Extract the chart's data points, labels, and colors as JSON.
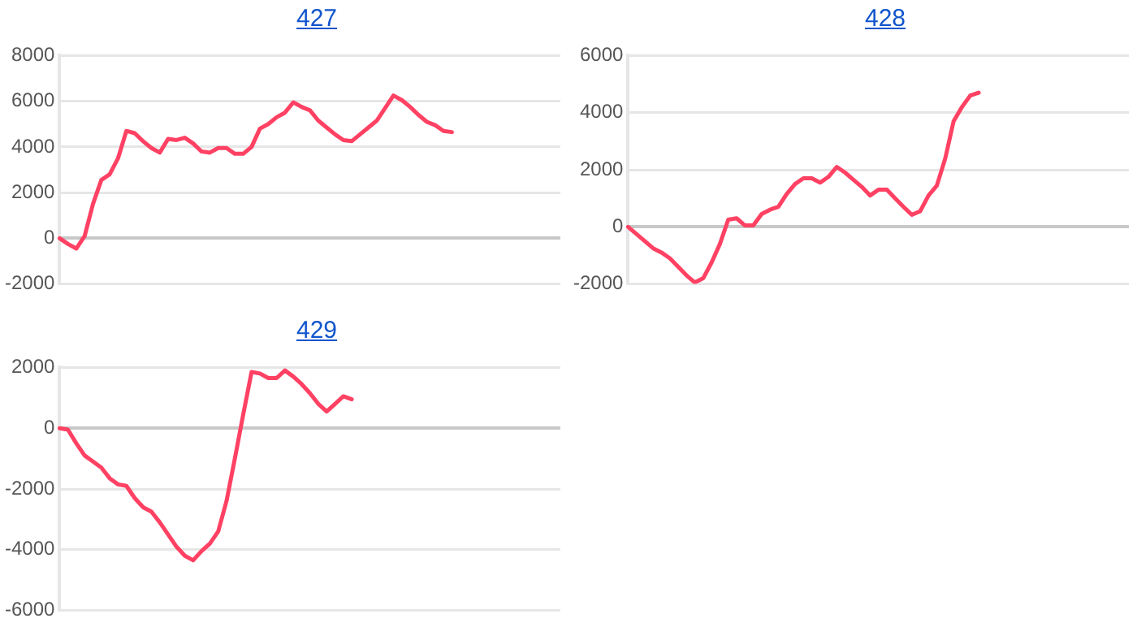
{
  "chart_data": [
    {
      "type": "line",
      "title": "427",
      "categories": [
        null,
        null,
        null,
        null,
        null,
        null,
        null,
        null,
        null,
        null,
        null,
        null,
        null,
        null,
        null,
        null,
        null,
        null,
        null,
        null,
        null,
        null,
        null,
        null,
        null,
        null,
        null,
        null,
        null,
        null,
        null,
        null,
        null,
        null,
        null,
        null,
        null,
        null,
        null,
        null,
        null,
        null,
        null,
        null,
        null,
        null,
        null,
        null,
        null,
        null,
        null,
        null,
        null,
        null,
        null,
        null,
        null,
        null,
        null,
        null,
        null
      ],
      "series": [
        {
          "color": "#ff4163",
          "values": [
            0,
            -250,
            -450,
            100,
            1500,
            2550,
            2800,
            3500,
            4700,
            4600,
            4250,
            3950,
            3750,
            4350,
            4300,
            4400,
            4150,
            3800,
            3750,
            3950,
            3950,
            3700,
            3700,
            4000,
            4800,
            5000,
            5300,
            5500,
            5950,
            5750,
            5600,
            5150,
            4850,
            4550,
            4300,
            4250,
            4550,
            4850,
            5150,
            5700,
            6250,
            6050,
            5750,
            5400,
            5100,
            4950,
            4700,
            4650,
            null,
            null,
            null,
            null,
            null,
            null,
            null,
            null,
            null,
            null,
            null,
            null,
            null
          ]
        }
      ],
      "ylim": [
        -2000,
        8000
      ],
      "yticks": [
        -2000,
        0,
        2000,
        4000,
        6000,
        8000
      ],
      "grid": "y",
      "tick_labels": "y",
      "legend": false,
      "marker": "none",
      "line_style": "solid"
    },
    {
      "type": "line",
      "title": "428",
      "categories": [
        null,
        null,
        null,
        null,
        null,
        null,
        null,
        null,
        null,
        null,
        null,
        null,
        null,
        null,
        null,
        null,
        null,
        null,
        null,
        null,
        null,
        null,
        null,
        null,
        null,
        null,
        null,
        null,
        null,
        null,
        null,
        null,
        null,
        null,
        null,
        null,
        null,
        null,
        null,
        null,
        null,
        null,
        null,
        null,
        null,
        null,
        null,
        null,
        null,
        null,
        null,
        null,
        null,
        null,
        null,
        null,
        null,
        null,
        null,
        null,
        null
      ],
      "series": [
        {
          "color": "#ff4163",
          "values": [
            0,
            -250,
            -500,
            -750,
            -900,
            -1100,
            -1400,
            -1700,
            -1950,
            -1800,
            -1250,
            -600,
            250,
            300,
            50,
            50,
            450,
            600,
            700,
            1150,
            1500,
            1700,
            1700,
            1550,
            1750,
            2100,
            1900,
            1650,
            1400,
            1100,
            1300,
            1300,
            1000,
            700,
            420,
            550,
            1100,
            1450,
            2400,
            3700,
            4200,
            4600,
            4700,
            null,
            null,
            null,
            null,
            null,
            null,
            null,
            null,
            null,
            null,
            null,
            null,
            null,
            null,
            null,
            null,
            null,
            null
          ]
        }
      ],
      "ylim": [
        -2000,
        6000
      ],
      "yticks": [
        -2000,
        0,
        2000,
        4000,
        6000
      ],
      "grid": "y",
      "tick_labels": "y",
      "legend": false,
      "marker": "none",
      "line_style": "solid"
    },
    {
      "type": "line",
      "title": "429",
      "categories": [
        null,
        null,
        null,
        null,
        null,
        null,
        null,
        null,
        null,
        null,
        null,
        null,
        null,
        null,
        null,
        null,
        null,
        null,
        null,
        null,
        null,
        null,
        null,
        null,
        null,
        null,
        null,
        null,
        null,
        null,
        null,
        null,
        null,
        null,
        null,
        null,
        null,
        null,
        null,
        null,
        null,
        null,
        null,
        null,
        null,
        null,
        null,
        null,
        null,
        null,
        null,
        null,
        null,
        null,
        null,
        null,
        null,
        null,
        null,
        null,
        null
      ],
      "series": [
        {
          "color": "#ff4163",
          "values": [
            0,
            -50,
            -500,
            -900,
            -1100,
            -1300,
            -1650,
            -1850,
            -1900,
            -2300,
            -2600,
            -2750,
            -3100,
            -3500,
            -3900,
            -4200,
            -4350,
            -4050,
            -3800,
            -3400,
            -2400,
            -1000,
            450,
            1850,
            1800,
            1650,
            1650,
            1900,
            1700,
            1450,
            1150,
            800,
            550,
            800,
            1050,
            950,
            null,
            null,
            null,
            null,
            null,
            null,
            null,
            null,
            null,
            null,
            null,
            null,
            null,
            null,
            null,
            null,
            null,
            null,
            null,
            null,
            null,
            null,
            null,
            null,
            null
          ]
        }
      ],
      "ylim": [
        -6000,
        2000
      ],
      "yticks": [
        -6000,
        -4000,
        -2000,
        0,
        2000
      ],
      "grid": "y",
      "tick_labels": "y",
      "legend": false,
      "marker": "none",
      "line_style": "solid"
    }
  ]
}
